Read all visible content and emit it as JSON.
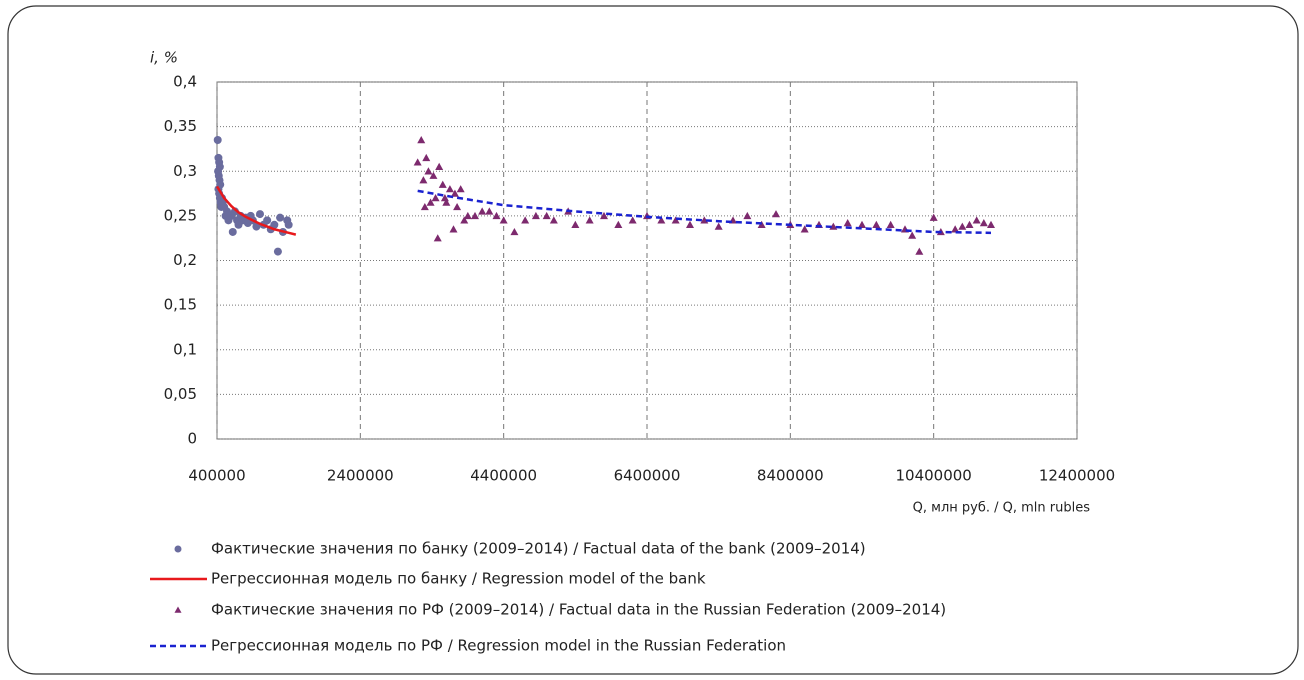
{
  "chart_data": {
    "type": "scatter",
    "y_label": "i, %",
    "x_label": "Q, млн руб. / Q, mln rubles",
    "xlim": [
      400000,
      12400000
    ],
    "xticks": [
      400000,
      2400000,
      4400000,
      6400000,
      8400000,
      10400000,
      12400000
    ],
    "ylim": [
      0,
      0.4
    ],
    "yticks": [
      0,
      {
        "value": 0.05,
        "label": "0,05"
      },
      {
        "value": 0.1,
        "label": "0,1"
      },
      {
        "value": 0.15,
        "label": "0,15"
      },
      {
        "value": 0.2,
        "label": "0,2"
      },
      {
        "value": 0.25,
        "label": "0,25"
      },
      {
        "value": 0.3,
        "label": "0,3"
      },
      {
        "value": 0.35,
        "label": "0,35"
      },
      {
        "value": 0.4,
        "label": "0,4"
      }
    ],
    "grid": true,
    "series": [
      {
        "name": "Фактические значения по банку (2009–2014) / Factual data of the bank (2009–2014)",
        "mark": "circle",
        "color": "#6a6c9e",
        "x": [
          410000,
          420000,
          430000,
          440000,
          415000,
          425000,
          435000,
          445000,
          420000,
          430000,
          440000,
          450000,
          460000,
          470000,
          480000,
          500000,
          520000,
          540000,
          560000,
          600000,
          620000,
          650000,
          680000,
          700000,
          730000,
          760000,
          800000,
          830000,
          870000,
          900000,
          950000,
          1000000,
          1050000,
          1100000,
          1150000,
          1200000,
          1250000,
          1280000,
          1320000,
          1380000,
          1400000
        ],
        "values": [
          0.335,
          0.315,
          0.31,
          0.305,
          0.3,
          0.295,
          0.29,
          0.285,
          0.28,
          0.275,
          0.27,
          0.265,
          0.26,
          0.27,
          0.265,
          0.26,
          0.25,
          0.255,
          0.245,
          0.25,
          0.232,
          0.255,
          0.245,
          0.24,
          0.25,
          0.245,
          0.248,
          0.242,
          0.25,
          0.245,
          0.238,
          0.252,
          0.24,
          0.245,
          0.235,
          0.24,
          0.21,
          0.248,
          0.232,
          0.245,
          0.24
        ]
      },
      {
        "name": "Регрессионная модель по банку / Regression model of the bank",
        "mark": "line",
        "color": "#e8191c",
        "x": [
          400000,
          500000,
          600000,
          700000,
          800000,
          900000,
          1000000,
          1100000,
          1200000,
          1300000,
          1400000,
          1500000
        ],
        "values": [
          0.283,
          0.27,
          0.261,
          0.254,
          0.249,
          0.245,
          0.241,
          0.238,
          0.235,
          0.233,
          0.231,
          0.229
        ]
      },
      {
        "name": "Фактические значения по РФ (2009–2014) / Factual data in the Russian Federation (2009–2014)",
        "mark": "triangle",
        "color": "#7d2a6e",
        "x": [
          3200000,
          3250000,
          3280000,
          3300000,
          3320000,
          3350000,
          3380000,
          3420000,
          3450000,
          3480000,
          3500000,
          3550000,
          3580000,
          3600000,
          3650000,
          3700000,
          3720000,
          3750000,
          3800000,
          3850000,
          3900000,
          4000000,
          4100000,
          4200000,
          4300000,
          4400000,
          4550000,
          4700000,
          4850000,
          5000000,
          5100000,
          5300000,
          5400000,
          5600000,
          5800000,
          6000000,
          6200000,
          6400000,
          6600000,
          6800000,
          7000000,
          7200000,
          7400000,
          7600000,
          7800000,
          8000000,
          8200000,
          8400000,
          8600000,
          8800000,
          9000000,
          9200000,
          9400000,
          9600000,
          9800000,
          10000000,
          10100000,
          10200000,
          10400000,
          10500000,
          10700000,
          10800000,
          10900000,
          11000000,
          11100000,
          11200000
        ],
        "values": [
          0.31,
          0.335,
          0.29,
          0.26,
          0.315,
          0.3,
          0.265,
          0.295,
          0.27,
          0.225,
          0.305,
          0.285,
          0.27,
          0.265,
          0.28,
          0.235,
          0.275,
          0.26,
          0.28,
          0.245,
          0.25,
          0.25,
          0.255,
          0.255,
          0.25,
          0.245,
          0.232,
          0.245,
          0.25,
          0.25,
          0.245,
          0.255,
          0.24,
          0.245,
          0.25,
          0.24,
          0.245,
          0.25,
          0.245,
          0.245,
          0.24,
          0.245,
          0.238,
          0.245,
          0.25,
          0.24,
          0.252,
          0.24,
          0.235,
          0.24,
          0.238,
          0.242,
          0.24,
          0.24,
          0.24,
          0.235,
          0.228,
          0.21,
          0.248,
          0.232,
          0.235,
          0.238,
          0.24,
          0.245,
          0.242,
          0.24
        ]
      },
      {
        "name": "Регрессионная модель по РФ / Regression model in the Russian Federation",
        "mark": "dashed-line",
        "color": "#1a22d0",
        "x": [
          3200000,
          3700000,
          4400000,
          5400000,
          6400000,
          7400000,
          8400000,
          9400000,
          10400000,
          11200000
        ],
        "values": [
          0.278,
          0.271,
          0.262,
          0.255,
          0.249,
          0.244,
          0.24,
          0.236,
          0.232,
          0.231
        ]
      }
    ]
  }
}
